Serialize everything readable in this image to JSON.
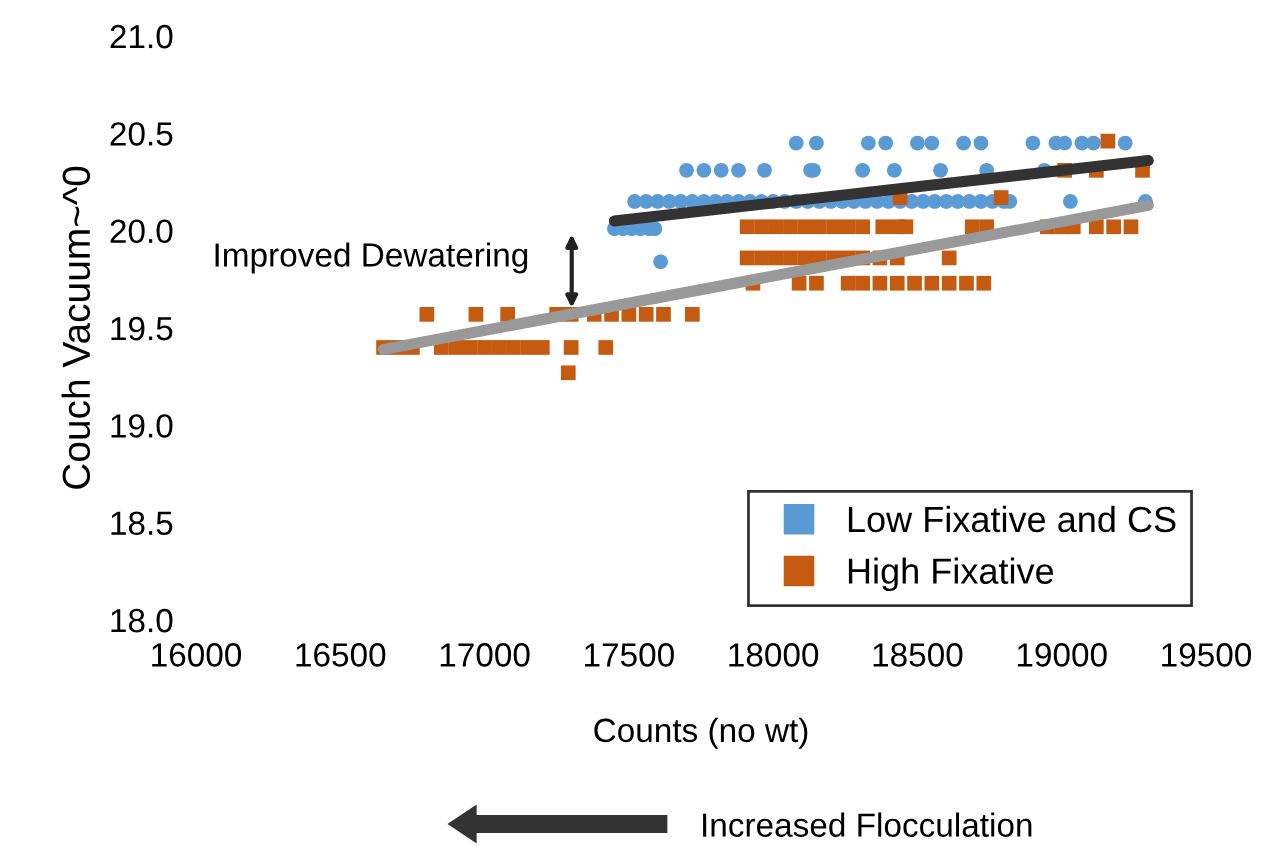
{
  "chart_data": {
    "type": "scatter",
    "xlabel": "Counts (no wt)",
    "ylabel": "Couch Vacuum~^0",
    "xlim": [
      16000,
      19500
    ],
    "xticks": [
      16000,
      16500,
      17000,
      17500,
      18000,
      18500,
      19000,
      19500
    ],
    "ylim": [
      18.0,
      21.0
    ],
    "yticks": [
      {
        "value": 18.0,
        "label": "18.0"
      },
      {
        "value": 18.5,
        "label": "18.5"
      },
      {
        "value": 19.0,
        "label": "19.0"
      },
      {
        "value": 19.5,
        "label": "19.5"
      },
      {
        "value": 20.0,
        "label": "20.0"
      },
      {
        "value": 20.5,
        "label": "20.5"
      },
      {
        "value": 21.0,
        "label": "21.0"
      }
    ],
    "grid": false,
    "legend": "bottom right",
    "series": [
      {
        "name": "Low Fixative and CS",
        "color": "#5b9bd5",
        "marker": "circle",
        "x": [
          17450,
          17480,
          17510,
          17540,
          17570,
          17590,
          17610,
          17520,
          17560,
          17600,
          17640,
          17680,
          17720,
          17760,
          17800,
          17840,
          17880,
          17920,
          17960,
          18000,
          18040,
          18080,
          18120,
          18160,
          18200,
          18240,
          18280,
          18320,
          18360,
          18400,
          18440,
          18480,
          18520,
          18560,
          18600,
          18640,
          18680,
          18720,
          18760,
          18800,
          18820,
          19030,
          19290,
          17700,
          17760,
          17820,
          17880,
          17970,
          18130,
          18140,
          18310,
          18420,
          18580,
          18740,
          18940,
          18080,
          18150,
          18330,
          18390,
          18500,
          18550,
          18660,
          18720,
          18900,
          18980,
          19010,
          19070,
          19110,
          19220
        ],
        "values": [
          20.01,
          20.01,
          20.01,
          20.01,
          20.01,
          20.01,
          19.84,
          20.15,
          20.15,
          20.15,
          20.15,
          20.15,
          20.15,
          20.15,
          20.15,
          20.15,
          20.15,
          20.15,
          20.15,
          20.15,
          20.15,
          20.15,
          20.15,
          20.15,
          20.15,
          20.15,
          20.15,
          20.15,
          20.15,
          20.15,
          20.15,
          20.15,
          20.15,
          20.15,
          20.15,
          20.15,
          20.15,
          20.15,
          20.15,
          20.15,
          20.15,
          20.15,
          20.15,
          20.31,
          20.31,
          20.31,
          20.31,
          20.31,
          20.31,
          20.31,
          20.31,
          20.31,
          20.31,
          20.31,
          20.31,
          20.45,
          20.45,
          20.45,
          20.45,
          20.45,
          20.45,
          20.45,
          20.45,
          20.45,
          20.45,
          20.45,
          20.45,
          20.45,
          20.45
        ]
      },
      {
        "name": "High Fixative",
        "color": "#c55a11",
        "marker": "square",
        "x": [
          16650,
          16700,
          16750,
          16850,
          16900,
          16950,
          17000,
          17050,
          17100,
          17150,
          17200,
          17300,
          17420,
          16800,
          16970,
          17080,
          17250,
          17300,
          17380,
          17440,
          17500,
          17560,
          17620,
          17720,
          17290,
          17930,
          18090,
          18150,
          18260,
          18310,
          18370,
          18430,
          18490,
          18550,
          18610,
          18670,
          18730,
          17910,
          17960,
          18010,
          18060,
          18110,
          18160,
          18210,
          18260,
          18310,
          18370,
          18430,
          18610,
          17910,
          17960,
          18010,
          18060,
          18110,
          18160,
          18210,
          18260,
          18310,
          18380,
          18430,
          18460,
          18690,
          18740,
          18950,
          19000,
          19040,
          19120,
          19180,
          19240,
          18440,
          18790,
          19010,
          19120,
          19280,
          19160
        ],
        "values": [
          19.4,
          19.4,
          19.4,
          19.4,
          19.4,
          19.4,
          19.4,
          19.4,
          19.4,
          19.4,
          19.4,
          19.4,
          19.4,
          19.57,
          19.57,
          19.57,
          19.57,
          19.57,
          19.57,
          19.57,
          19.57,
          19.57,
          19.57,
          19.57,
          19.27,
          19.73,
          19.73,
          19.73,
          19.73,
          19.73,
          19.73,
          19.73,
          19.73,
          19.73,
          19.73,
          19.73,
          19.73,
          19.86,
          19.86,
          19.86,
          19.86,
          19.86,
          19.86,
          19.86,
          19.86,
          19.86,
          19.86,
          19.86,
          19.86,
          20.02,
          20.02,
          20.02,
          20.02,
          20.02,
          20.02,
          20.02,
          20.02,
          20.02,
          20.02,
          20.02,
          20.02,
          20.02,
          20.02,
          20.02,
          20.02,
          20.02,
          20.02,
          20.02,
          20.02,
          20.17,
          20.17,
          20.31,
          20.31,
          20.31,
          20.46
        ]
      },
      {
        "type": "line",
        "color": "#333333",
        "x": [
          17450,
          19300
        ],
        "values": [
          20.05,
          20.36
        ]
      },
      {
        "type": "line",
        "color": "#999999",
        "x": [
          16650,
          19300
        ],
        "values": [
          19.39,
          20.13
        ]
      }
    ],
    "annotations": [
      "Improved Dewatering",
      "Increased Flocculation"
    ]
  }
}
